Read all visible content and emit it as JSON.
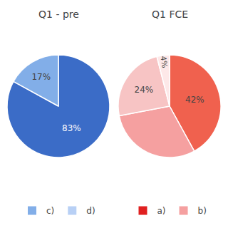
{
  "chart_data": [
    {
      "type": "pie",
      "title": "Q1 - pre",
      "values": [
        83,
        17
      ],
      "value_labels": [
        "83%",
        "17%"
      ],
      "colors": [
        "#3b6cc7",
        "#82aee8"
      ],
      "series": [
        {
          "name": "c)",
          "color": "#82aee8"
        },
        {
          "name": "d)",
          "color": "#b8d0f5"
        }
      ],
      "legend": "lower center"
    },
    {
      "type": "pie",
      "title": "Q1 FCE",
      "values": [
        42,
        30,
        24,
        4
      ],
      "value_labels": [
        "42%",
        null,
        "24%",
        "4%"
      ],
      "colors": [
        "#f0614e",
        "#f5a0a0",
        "#f7c4c4",
        "#fde8e8"
      ],
      "series": [
        {
          "name": "a)",
          "color": "#e02020"
        },
        {
          "name": "b)",
          "color": "#f5a0a0"
        }
      ],
      "legend": "lower center"
    }
  ]
}
